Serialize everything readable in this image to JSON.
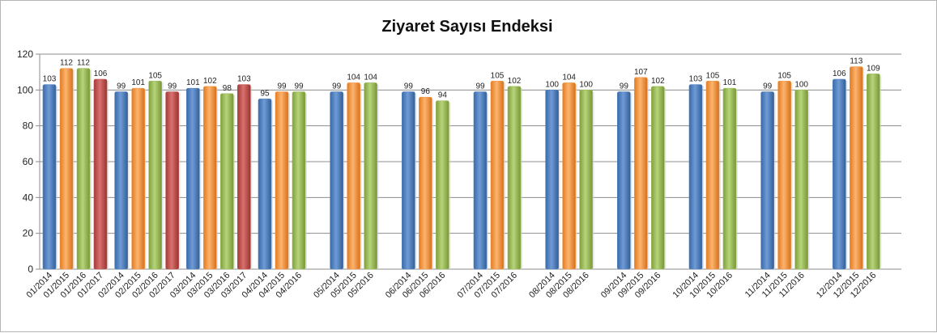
{
  "chart_data": {
    "type": "bar",
    "title": "Ziyaret Sayısı Endeksi",
    "xlabel": "",
    "ylabel": "",
    "ylim": [
      0,
      120
    ],
    "yticks": [
      0,
      20,
      40,
      60,
      80,
      100,
      120
    ],
    "grid": true,
    "legend": "none",
    "colors": {
      "2014": "#4f81bd",
      "2015": "#f79646",
      "2016": "#9bbb59",
      "2017": "#c0504d"
    },
    "groups": [
      {
        "bars": [
          {
            "label": "01/2014",
            "year": "2014",
            "value": 103
          },
          {
            "label": "01/2015",
            "year": "2015",
            "value": 112
          },
          {
            "label": "01/2016",
            "year": "2016",
            "value": 112
          },
          {
            "label": "01/2017",
            "year": "2017",
            "value": 106
          }
        ]
      },
      {
        "bars": [
          {
            "label": "02/2014",
            "year": "2014",
            "value": 99
          },
          {
            "label": "02/2015",
            "year": "2015",
            "value": 101
          },
          {
            "label": "02/2016",
            "year": "2016",
            "value": 105
          },
          {
            "label": "02/2017",
            "year": "2017",
            "value": 99
          }
        ]
      },
      {
        "bars": [
          {
            "label": "03/2014",
            "year": "2014",
            "value": 101
          },
          {
            "label": "03/2015",
            "year": "2015",
            "value": 102
          },
          {
            "label": "03/2016",
            "year": "2016",
            "value": 98
          },
          {
            "label": "03/2017",
            "year": "2017",
            "value": 103
          }
        ]
      },
      {
        "bars": [
          {
            "label": "04/2014",
            "year": "2014",
            "value": 95
          },
          {
            "label": "04/2015",
            "year": "2015",
            "value": 99
          },
          {
            "label": "04/2016",
            "year": "2016",
            "value": 99
          }
        ]
      },
      {
        "bars": [
          {
            "label": "05/2014",
            "year": "2014",
            "value": 99
          },
          {
            "label": "05/2015",
            "year": "2015",
            "value": 104
          },
          {
            "label": "05/2016",
            "year": "2016",
            "value": 104
          }
        ]
      },
      {
        "bars": [
          {
            "label": "06/2014",
            "year": "2014",
            "value": 99
          },
          {
            "label": "06/2015",
            "year": "2015",
            "value": 96
          },
          {
            "label": "06/2016",
            "year": "2016",
            "value": 94
          }
        ]
      },
      {
        "bars": [
          {
            "label": "07/2014",
            "year": "2014",
            "value": 99
          },
          {
            "label": "07/2015",
            "year": "2015",
            "value": 105
          },
          {
            "label": "07/2016",
            "year": "2016",
            "value": 102
          }
        ]
      },
      {
        "bars": [
          {
            "label": "08/2014",
            "year": "2014",
            "value": 100
          },
          {
            "label": "08/2015",
            "year": "2015",
            "value": 104
          },
          {
            "label": "08/2016",
            "year": "2016",
            "value": 100
          }
        ]
      },
      {
        "bars": [
          {
            "label": "09/2014",
            "year": "2014",
            "value": 99
          },
          {
            "label": "09/2015",
            "year": "2015",
            "value": 107
          },
          {
            "label": "09/2016",
            "year": "2016",
            "value": 102
          }
        ]
      },
      {
        "bars": [
          {
            "label": "10/2014",
            "year": "2014",
            "value": 103
          },
          {
            "label": "10/2015",
            "year": "2015",
            "value": 105
          },
          {
            "label": "10/2016",
            "year": "2016",
            "value": 101
          }
        ]
      },
      {
        "bars": [
          {
            "label": "11/2014",
            "year": "2014",
            "value": 99
          },
          {
            "label": "11/2015",
            "year": "2015",
            "value": 105
          },
          {
            "label": "11/2016",
            "year": "2016",
            "value": 100
          }
        ]
      },
      {
        "bars": [
          {
            "label": "12/2014",
            "year": "2014",
            "value": 106
          },
          {
            "label": "12/2015",
            "year": "2015",
            "value": 113
          },
          {
            "label": "12/2016",
            "year": "2016",
            "value": 109
          }
        ]
      }
    ]
  }
}
